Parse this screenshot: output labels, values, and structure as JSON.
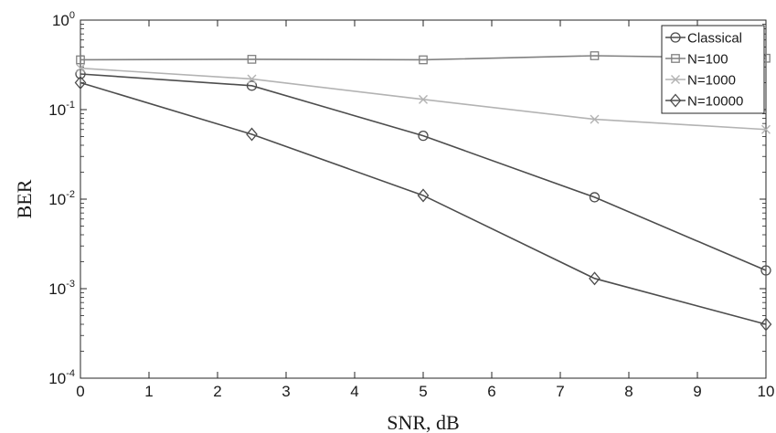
{
  "chart_data": {
    "type": "line",
    "xlabel": "SNR, dB",
    "ylabel": "BER",
    "xlim": [
      0,
      10
    ],
    "ylim": [
      0.0001,
      1
    ],
    "y_scale": "log",
    "x_ticks": [
      "0",
      "1",
      "2",
      "3",
      "4",
      "5",
      "6",
      "7",
      "8",
      "9",
      "10"
    ],
    "y_ticks": [
      {
        "base": "10",
        "exp": "0"
      },
      {
        "base": "10",
        "exp": "-1"
      },
      {
        "base": "10",
        "exp": "-2"
      },
      {
        "base": "10",
        "exp": "-3"
      },
      {
        "base": "10",
        "exp": "-4"
      }
    ],
    "grid": false,
    "legend_position": "top-right",
    "series": [
      {
        "name": "Classical",
        "marker": "circle",
        "color": "#4d4d4d",
        "x": [
          0,
          2.5,
          5,
          7.5,
          10
        ],
        "y": [
          0.25,
          0.185,
          0.051,
          0.0105,
          0.0016
        ]
      },
      {
        "name": "N=100",
        "marker": "square",
        "color": "#808080",
        "x": [
          0,
          2.5,
          5,
          7.5,
          10
        ],
        "y": [
          0.36,
          0.365,
          0.36,
          0.4,
          0.375
        ]
      },
      {
        "name": "N=1000",
        "marker": "x",
        "color": "#b3b3b3",
        "x": [
          0,
          2.5,
          5,
          7.5,
          10
        ],
        "y": [
          0.29,
          0.22,
          0.13,
          0.078,
          0.06
        ]
      },
      {
        "name": "N=10000",
        "marker": "diamond",
        "color": "#4d4d4d",
        "x": [
          0,
          2.5,
          5,
          7.5,
          10
        ],
        "y": [
          0.2,
          0.053,
          0.011,
          0.0013,
          0.0004
        ]
      }
    ]
  }
}
